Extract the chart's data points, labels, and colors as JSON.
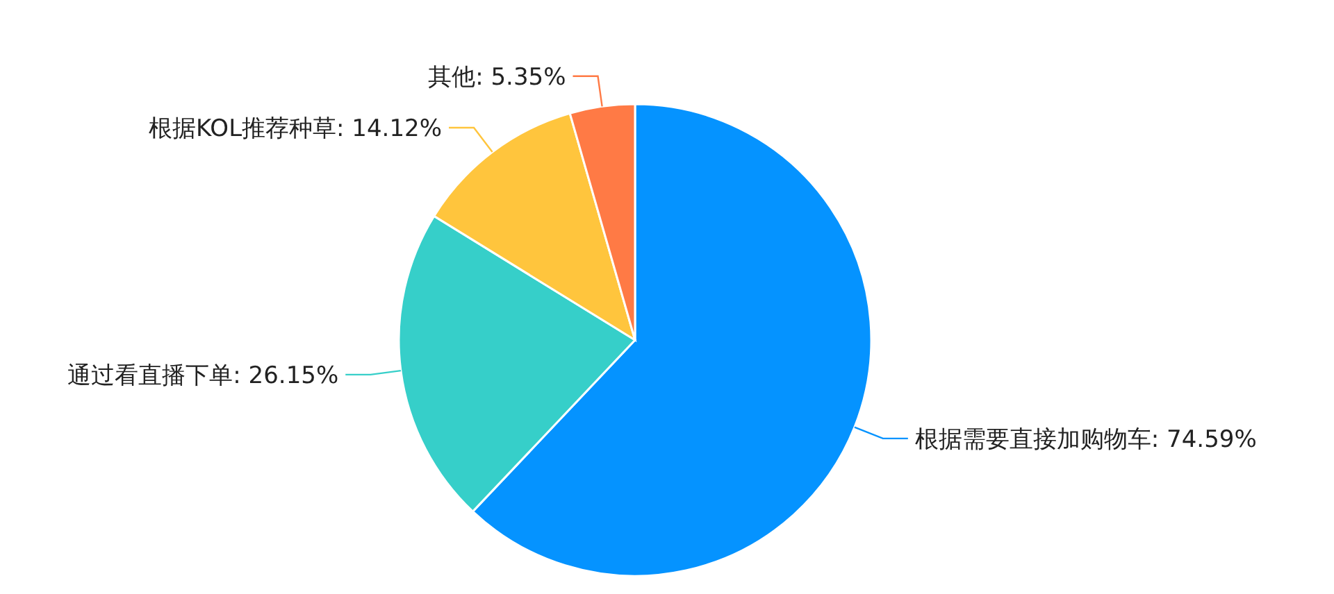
{
  "chart_data": {
    "type": "pie",
    "categories": [
      "根据需要直接加购物车",
      "通过看直播下单",
      "根据KOL推荐种草",
      "其他"
    ],
    "values": [
      74.59,
      26.15,
      14.12,
      5.35
    ],
    "value_labels": [
      "74.59%",
      "26.15%",
      "14.12%",
      "5.35%"
    ],
    "colors": [
      "#0593ff",
      "#36cfc9",
      "#ffc53d",
      "#ff7a45"
    ]
  }
}
